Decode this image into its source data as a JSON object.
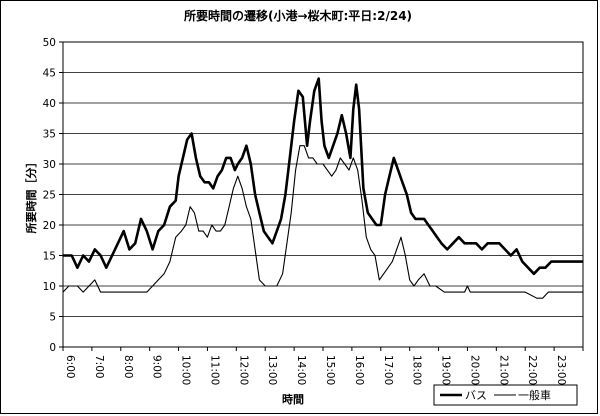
{
  "chart_data": {
    "type": "line",
    "title": "所要時間の遷移(小港→桜木町:平日:2/24)",
    "xlabel": "時間",
    "ylabel": "所要時間［分］",
    "ylim": [
      0,
      50
    ],
    "yticks": [
      0,
      5,
      10,
      15,
      20,
      25,
      30,
      35,
      40,
      45,
      50
    ],
    "xlim": [
      6,
      24
    ],
    "xtick_labels": [
      "6:00",
      "7:00",
      "8:00",
      "9:00",
      "10:00",
      "11:00",
      "12:00",
      "13:00",
      "14:00",
      "15:00",
      "16:00",
      "17:00",
      "18:00",
      "19:00",
      "20:00",
      "21:00",
      "22:00",
      "23:00"
    ],
    "grid": true,
    "legend_position": "bottom-right",
    "series": [
      {
        "name": "バス",
        "color": "#000000",
        "points": [
          [
            6.0,
            15
          ],
          [
            6.3,
            15
          ],
          [
            6.5,
            13
          ],
          [
            6.7,
            15
          ],
          [
            6.9,
            14
          ],
          [
            7.1,
            16
          ],
          [
            7.3,
            15
          ],
          [
            7.5,
            13
          ],
          [
            7.7,
            15
          ],
          [
            7.9,
            17
          ],
          [
            8.1,
            19
          ],
          [
            8.3,
            16
          ],
          [
            8.5,
            17
          ],
          [
            8.7,
            21
          ],
          [
            8.9,
            19
          ],
          [
            9.1,
            16
          ],
          [
            9.3,
            19
          ],
          [
            9.5,
            20
          ],
          [
            9.7,
            23
          ],
          [
            9.9,
            24
          ],
          [
            10.0,
            28
          ],
          [
            10.15,
            31
          ],
          [
            10.3,
            34
          ],
          [
            10.45,
            35
          ],
          [
            10.6,
            31
          ],
          [
            10.75,
            28
          ],
          [
            10.9,
            27
          ],
          [
            11.05,
            27
          ],
          [
            11.2,
            26
          ],
          [
            11.35,
            28
          ],
          [
            11.5,
            29
          ],
          [
            11.65,
            31
          ],
          [
            11.8,
            31
          ],
          [
            11.95,
            29
          ],
          [
            12.05,
            30
          ],
          [
            12.2,
            31
          ],
          [
            12.35,
            33
          ],
          [
            12.5,
            30
          ],
          [
            12.65,
            25
          ],
          [
            12.8,
            22
          ],
          [
            12.95,
            19
          ],
          [
            13.1,
            18
          ],
          [
            13.25,
            17
          ],
          [
            13.4,
            19
          ],
          [
            13.55,
            21
          ],
          [
            13.7,
            25
          ],
          [
            13.85,
            31
          ],
          [
            14.0,
            37
          ],
          [
            14.15,
            42
          ],
          [
            14.3,
            41
          ],
          [
            14.45,
            33
          ],
          [
            14.55,
            37
          ],
          [
            14.7,
            42
          ],
          [
            14.85,
            44
          ],
          [
            14.95,
            37
          ],
          [
            15.05,
            33
          ],
          [
            15.2,
            31
          ],
          [
            15.35,
            33
          ],
          [
            15.5,
            35
          ],
          [
            15.65,
            38
          ],
          [
            15.8,
            35
          ],
          [
            15.95,
            31
          ],
          [
            16.05,
            39
          ],
          [
            16.15,
            43
          ],
          [
            16.25,
            39
          ],
          [
            16.4,
            26
          ],
          [
            16.55,
            22
          ],
          [
            16.7,
            21
          ],
          [
            16.85,
            20
          ],
          [
            17.0,
            20
          ],
          [
            17.15,
            25
          ],
          [
            17.3,
            28
          ],
          [
            17.45,
            31
          ],
          [
            17.6,
            29
          ],
          [
            17.75,
            27
          ],
          [
            17.9,
            25
          ],
          [
            18.05,
            22
          ],
          [
            18.2,
            21
          ],
          [
            18.35,
            21
          ],
          [
            18.5,
            21
          ],
          [
            18.65,
            20
          ],
          [
            18.8,
            19
          ],
          [
            18.95,
            18
          ],
          [
            19.1,
            17
          ],
          [
            19.3,
            16
          ],
          [
            19.5,
            17
          ],
          [
            19.7,
            18
          ],
          [
            19.9,
            17
          ],
          [
            20.1,
            17
          ],
          [
            20.3,
            17
          ],
          [
            20.5,
            16
          ],
          [
            20.7,
            17
          ],
          [
            20.9,
            17
          ],
          [
            21.1,
            17
          ],
          [
            21.3,
            16
          ],
          [
            21.5,
            15
          ],
          [
            21.7,
            16
          ],
          [
            21.9,
            14
          ],
          [
            22.1,
            13
          ],
          [
            22.3,
            12
          ],
          [
            22.5,
            13
          ],
          [
            22.7,
            13
          ],
          [
            22.9,
            14
          ],
          [
            23.2,
            14
          ],
          [
            23.6,
            14
          ],
          [
            24.0,
            14
          ]
        ]
      },
      {
        "name": "一般車",
        "color": "#000000",
        "points": [
          [
            6.0,
            9
          ],
          [
            6.2,
            10
          ],
          [
            6.5,
            10
          ],
          [
            6.7,
            9
          ],
          [
            6.9,
            10
          ],
          [
            7.1,
            11
          ],
          [
            7.3,
            9
          ],
          [
            7.6,
            9
          ],
          [
            8.0,
            9
          ],
          [
            8.5,
            9
          ],
          [
            8.9,
            9
          ],
          [
            9.1,
            10
          ],
          [
            9.3,
            11
          ],
          [
            9.5,
            12
          ],
          [
            9.7,
            14
          ],
          [
            9.9,
            18
          ],
          [
            10.1,
            19
          ],
          [
            10.25,
            20
          ],
          [
            10.4,
            23
          ],
          [
            10.55,
            22
          ],
          [
            10.7,
            19
          ],
          [
            10.85,
            19
          ],
          [
            11.0,
            18
          ],
          [
            11.15,
            20
          ],
          [
            11.3,
            19
          ],
          [
            11.45,
            19
          ],
          [
            11.6,
            20
          ],
          [
            11.75,
            23
          ],
          [
            11.9,
            26
          ],
          [
            12.05,
            28
          ],
          [
            12.2,
            26
          ],
          [
            12.35,
            23
          ],
          [
            12.5,
            21
          ],
          [
            12.65,
            16
          ],
          [
            12.8,
            11
          ],
          [
            13.0,
            10
          ],
          [
            13.2,
            10
          ],
          [
            13.4,
            10
          ],
          [
            13.6,
            12
          ],
          [
            13.75,
            17
          ],
          [
            13.9,
            22
          ],
          [
            14.05,
            29
          ],
          [
            14.2,
            33
          ],
          [
            14.35,
            33
          ],
          [
            14.5,
            31
          ],
          [
            14.65,
            31
          ],
          [
            14.8,
            30
          ],
          [
            15.0,
            30
          ],
          [
            15.15,
            29
          ],
          [
            15.3,
            28
          ],
          [
            15.45,
            29
          ],
          [
            15.6,
            31
          ],
          [
            15.75,
            30
          ],
          [
            15.9,
            29
          ],
          [
            16.05,
            31
          ],
          [
            16.2,
            29
          ],
          [
            16.35,
            24
          ],
          [
            16.5,
            18
          ],
          [
            16.65,
            16
          ],
          [
            16.8,
            15
          ],
          [
            16.95,
            11
          ],
          [
            17.1,
            12
          ],
          [
            17.25,
            13
          ],
          [
            17.4,
            14
          ],
          [
            17.55,
            16
          ],
          [
            17.7,
            18
          ],
          [
            17.85,
            15
          ],
          [
            18.0,
            11
          ],
          [
            18.15,
            10
          ],
          [
            18.3,
            11
          ],
          [
            18.5,
            12
          ],
          [
            18.7,
            10
          ],
          [
            18.9,
            10
          ],
          [
            19.2,
            9
          ],
          [
            19.6,
            9
          ],
          [
            19.9,
            9
          ],
          [
            20.0,
            10
          ],
          [
            20.1,
            9
          ],
          [
            20.5,
            9
          ],
          [
            21.0,
            9
          ],
          [
            21.5,
            9
          ],
          [
            22.0,
            9
          ],
          [
            22.4,
            8
          ],
          [
            22.6,
            8
          ],
          [
            22.8,
            9
          ],
          [
            23.2,
            9
          ],
          [
            24.0,
            9
          ]
        ]
      }
    ]
  }
}
